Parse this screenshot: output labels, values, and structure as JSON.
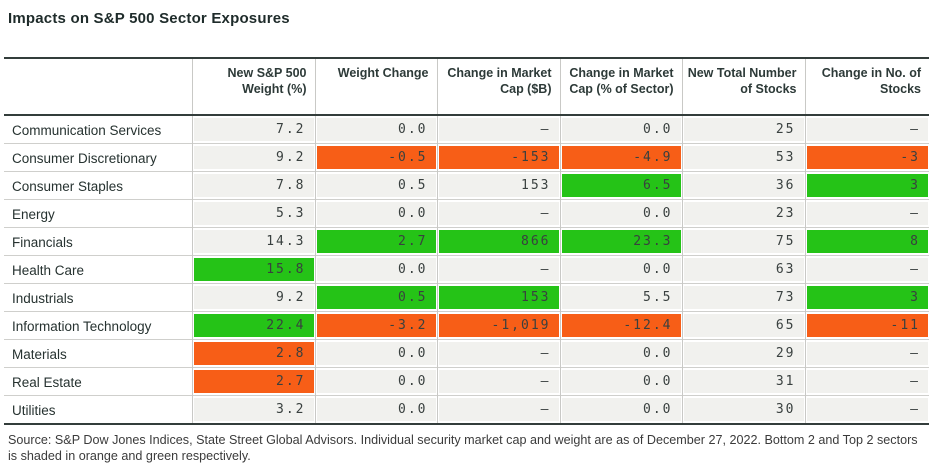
{
  "title": "Impacts on S&P 500 Sector Exposures",
  "colors": {
    "highlight_green": "#25C317",
    "highlight_orange": "#F75E17",
    "cell_background": "#F1F1EE"
  },
  "chart_data": {
    "type": "table",
    "title": "Impacts on S&P 500 Sector Exposures",
    "corner_header": "",
    "columns": [
      "New S&P 500 Weight (%)",
      "Weight Change",
      "Change in Market Cap ($B)",
      "Change in Market Cap (% of Sector)",
      "New Total Number of Stocks",
      "Change in No. of Stocks"
    ],
    "highlight_meaning": {
      "orange": "Bottom 2 sectors",
      "green": "Top 2 sectors"
    },
    "rows": [
      {
        "sector": "Communication Services",
        "cells": [
          {
            "v": "7.2",
            "hl": "none"
          },
          {
            "v": "0.0",
            "hl": "none"
          },
          {
            "v": "—",
            "hl": "none"
          },
          {
            "v": "0.0",
            "hl": "none"
          },
          {
            "v": "25",
            "hl": "none"
          },
          {
            "v": "—",
            "hl": "none"
          }
        ]
      },
      {
        "sector": "Consumer Discretionary",
        "cells": [
          {
            "v": "9.2",
            "hl": "none"
          },
          {
            "v": "-0.5",
            "hl": "orange"
          },
          {
            "v": "-153",
            "hl": "orange"
          },
          {
            "v": "-4.9",
            "hl": "orange"
          },
          {
            "v": "53",
            "hl": "none"
          },
          {
            "v": "-3",
            "hl": "orange"
          }
        ]
      },
      {
        "sector": "Consumer Staples",
        "cells": [
          {
            "v": "7.8",
            "hl": "none"
          },
          {
            "v": "0.5",
            "hl": "none"
          },
          {
            "v": "153",
            "hl": "none"
          },
          {
            "v": "6.5",
            "hl": "green"
          },
          {
            "v": "36",
            "hl": "none"
          },
          {
            "v": "3",
            "hl": "green"
          }
        ]
      },
      {
        "sector": "Energy",
        "cells": [
          {
            "v": "5.3",
            "hl": "none"
          },
          {
            "v": "0.0",
            "hl": "none"
          },
          {
            "v": "—",
            "hl": "none"
          },
          {
            "v": "0.0",
            "hl": "none"
          },
          {
            "v": "23",
            "hl": "none"
          },
          {
            "v": "—",
            "hl": "none"
          }
        ]
      },
      {
        "sector": "Financials",
        "cells": [
          {
            "v": "14.3",
            "hl": "none"
          },
          {
            "v": "2.7",
            "hl": "green"
          },
          {
            "v": "866",
            "hl": "green"
          },
          {
            "v": "23.3",
            "hl": "green"
          },
          {
            "v": "75",
            "hl": "none"
          },
          {
            "v": "8",
            "hl": "green"
          }
        ]
      },
      {
        "sector": "Health Care",
        "cells": [
          {
            "v": "15.8",
            "hl": "green"
          },
          {
            "v": "0.0",
            "hl": "none"
          },
          {
            "v": "—",
            "hl": "none"
          },
          {
            "v": "0.0",
            "hl": "none"
          },
          {
            "v": "63",
            "hl": "none"
          },
          {
            "v": "—",
            "hl": "none"
          }
        ]
      },
      {
        "sector": "Industrials",
        "cells": [
          {
            "v": "9.2",
            "hl": "none"
          },
          {
            "v": "0.5",
            "hl": "green"
          },
          {
            "v": "153",
            "hl": "green"
          },
          {
            "v": "5.5",
            "hl": "none"
          },
          {
            "v": "73",
            "hl": "none"
          },
          {
            "v": "3",
            "hl": "green"
          }
        ]
      },
      {
        "sector": "Information Technology",
        "cells": [
          {
            "v": "22.4",
            "hl": "green"
          },
          {
            "v": "-3.2",
            "hl": "orange"
          },
          {
            "v": "-1,019",
            "hl": "orange"
          },
          {
            "v": "-12.4",
            "hl": "orange"
          },
          {
            "v": "65",
            "hl": "none"
          },
          {
            "v": "-11",
            "hl": "orange"
          }
        ]
      },
      {
        "sector": "Materials",
        "cells": [
          {
            "v": "2.8",
            "hl": "orange"
          },
          {
            "v": "0.0",
            "hl": "none"
          },
          {
            "v": "—",
            "hl": "none"
          },
          {
            "v": "0.0",
            "hl": "none"
          },
          {
            "v": "29",
            "hl": "none"
          },
          {
            "v": "—",
            "hl": "none"
          }
        ]
      },
      {
        "sector": "Real Estate",
        "cells": [
          {
            "v": "2.7",
            "hl": "orange"
          },
          {
            "v": "0.0",
            "hl": "none"
          },
          {
            "v": "—",
            "hl": "none"
          },
          {
            "v": "0.0",
            "hl": "none"
          },
          {
            "v": "31",
            "hl": "none"
          },
          {
            "v": "—",
            "hl": "none"
          }
        ]
      },
      {
        "sector": "Utilities",
        "cells": [
          {
            "v": "3.2",
            "hl": "none"
          },
          {
            "v": "0.0",
            "hl": "none"
          },
          {
            "v": "—",
            "hl": "none"
          },
          {
            "v": "0.0",
            "hl": "none"
          },
          {
            "v": "30",
            "hl": "none"
          },
          {
            "v": "—",
            "hl": "none"
          }
        ]
      }
    ]
  },
  "source": "Source: S&P Dow Jones Indices, State Street Global Advisors. Individual security market cap and weight are as of December 27, 2022. Bottom 2 and Top 2 sectors is shaded in orange and green respectively."
}
